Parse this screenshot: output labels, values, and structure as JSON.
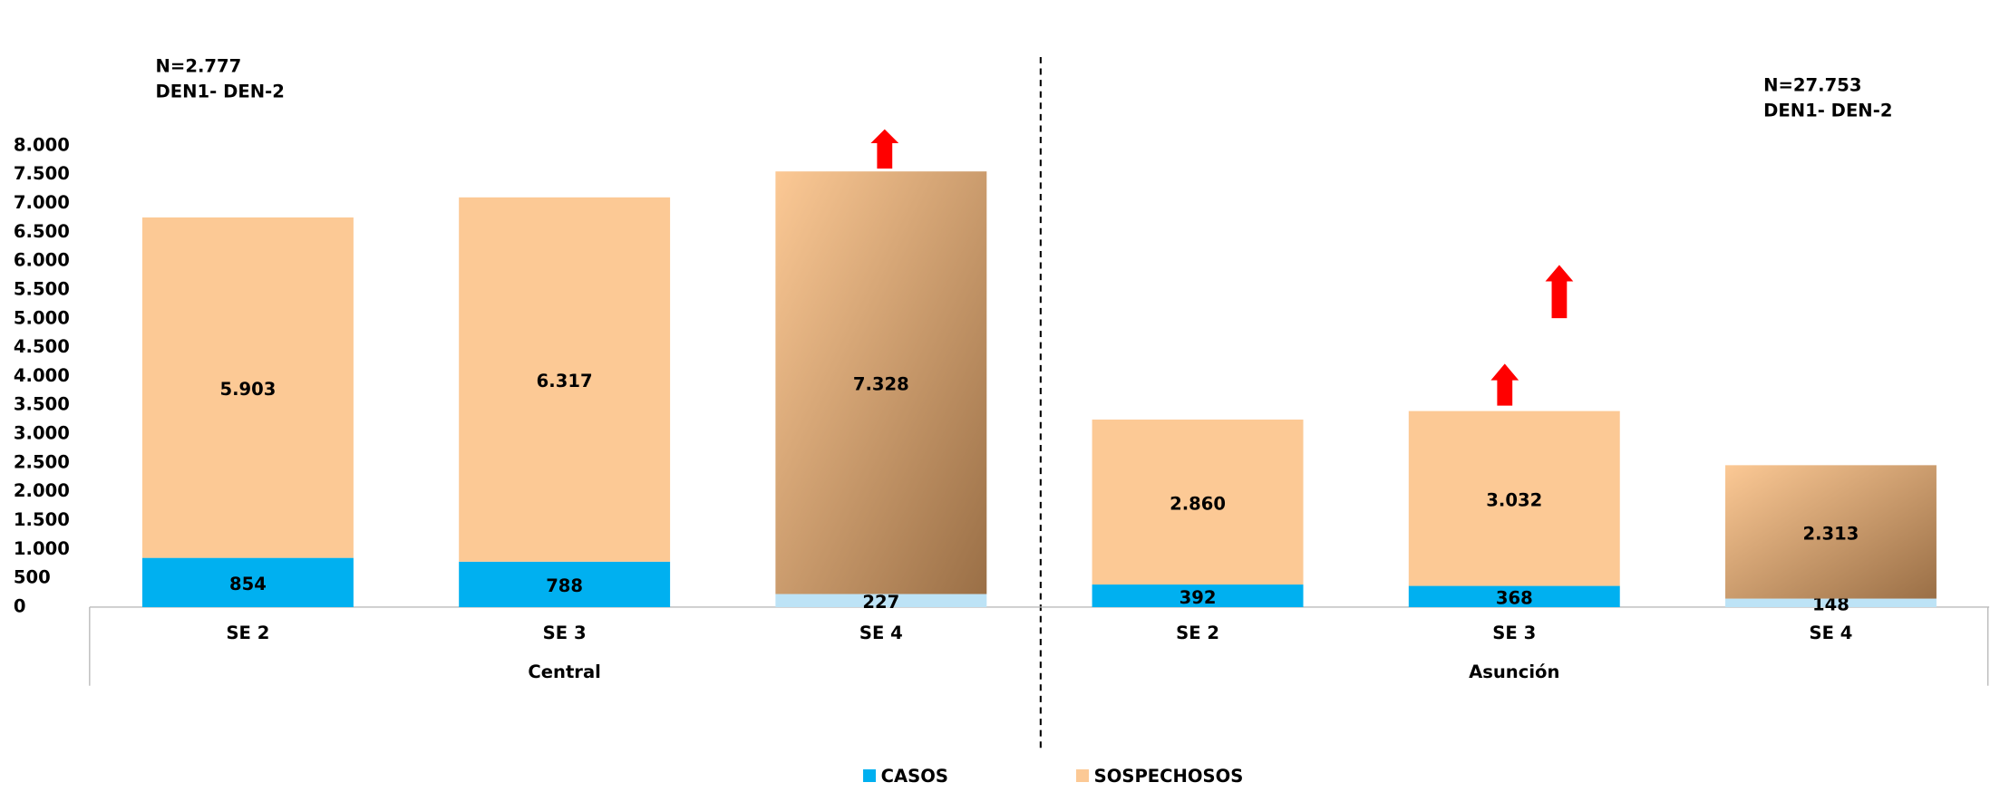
{
  "chart_data": {
    "type": "stacked-bar",
    "categories": [
      "SE 2",
      "SE 3",
      "SE 4",
      "SE 2",
      "SE 3",
      "SE 4"
    ],
    "groups": [
      "Central",
      "Asunción"
    ],
    "annotations": [
      "N=2.777",
      "DEN1- DEN-2",
      "N=27.753",
      "DEN1- DEN-2"
    ],
    "series": [
      {
        "name": "CASOS",
        "color": "#00b0f0",
        "colors": [
          "#00b0f0",
          "#00b0f0",
          "#bde3f6",
          "#00b0f0",
          "#00b0f0",
          "#bde3f6"
        ],
        "values": [
          854,
          788,
          227,
          392,
          368,
          148
        ],
        "value_labels": [
          "854",
          "788",
          "227",
          "392",
          "368",
          "148"
        ]
      },
      {
        "name": "SOSPECHOSOS",
        "color": "#fcc995",
        "colors": [
          "#fcc995",
          "#fcc995",
          "#9a6f46",
          "#fcc995",
          "#fcc995",
          "#9a6f46"
        ],
        "values": [
          5903,
          6317,
          7328,
          2860,
          3032,
          2313
        ],
        "value_labels": [
          "5.903",
          "6.317",
          "7.328",
          "2.860",
          "3.032",
          "2.313"
        ]
      }
    ],
    "ylim": [
      0,
      8000
    ],
    "yticks": [
      0,
      {
        "value": 500,
        "label": "500"
      },
      {
        "value": 1000,
        "label": "1.000"
      },
      {
        "value": 1500,
        "label": "1.500"
      },
      {
        "value": 2000,
        "label": "2.000"
      },
      {
        "value": 2500,
        "label": "2.500"
      },
      {
        "value": 3000,
        "label": "3.000"
      },
      {
        "value": 3500,
        "label": "3.500"
      },
      {
        "value": 4000,
        "label": "4.000"
      },
      {
        "value": 4500,
        "label": "4.500"
      },
      {
        "value": 5000,
        "label": "5.000"
      },
      {
        "value": 5500,
        "label": "5.500"
      },
      {
        "value": 6000,
        "label": "6.000"
      },
      {
        "value": 6500,
        "label": "6.500"
      },
      {
        "value": 7000,
        "label": "7.000"
      },
      {
        "value": 7500,
        "label": "7.500"
      },
      {
        "value": 8000,
        "label": "8.000"
      }
    ],
    "grid": false
  }
}
